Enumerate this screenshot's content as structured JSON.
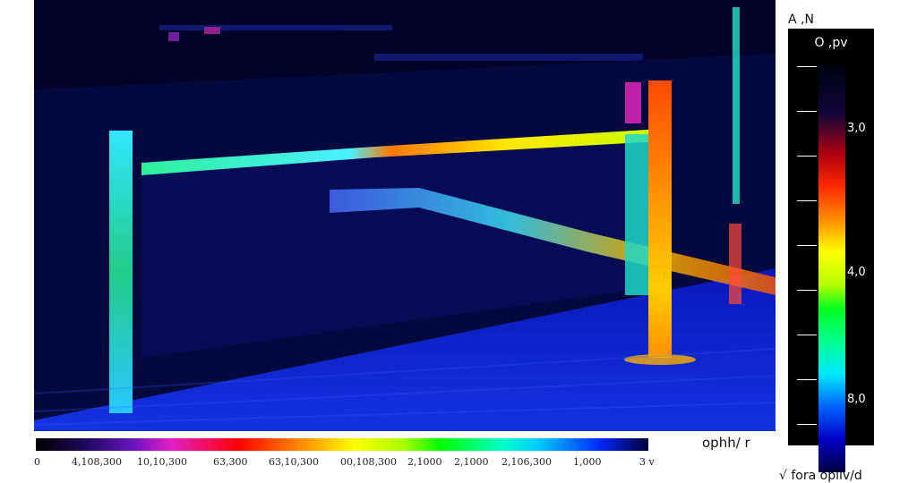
{
  "image": {
    "kind": "thermal-camera-image",
    "scene": "pipes and pillars over a floor"
  },
  "horizontal_scale": {
    "unit": "ophh/ r",
    "ticks": [
      "0",
      "4,108,300",
      "10,10,300",
      "63,300",
      "63,10,300",
      "00,108,300",
      "2,1000",
      "2,1000",
      "2,106,300",
      "1,000",
      "3 v"
    ]
  },
  "vertical_scale": {
    "corner_label": "A ,N",
    "title": "O ,pv",
    "labels": [
      "3,0",
      "4,0",
      "8,0"
    ],
    "footer": "√ fora opliv/d"
  },
  "colors": {
    "background": "#000012",
    "hot": "#ff2a00",
    "warm": "#ffff00",
    "mid": "#00ff00",
    "cool": "#00e8ff",
    "cold": "#0000c8"
  }
}
